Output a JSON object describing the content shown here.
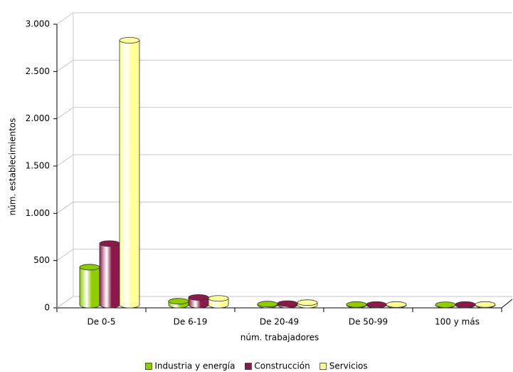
{
  "chart_data": {
    "type": "bar",
    "x_label": "núm. trabajadores",
    "y_label": "núm. establecimientos",
    "categories": [
      "De 0-5",
      "De 6-19",
      "De 20-49",
      "De 50-99",
      "100 y más"
    ],
    "series": [
      {
        "name": "Industria y energía",
        "color": "#8fcc00",
        "values": [
          400,
          40,
          10,
          5,
          3
        ]
      },
      {
        "name": "Construcción",
        "color": "#8b1a4a",
        "values": [
          650,
          80,
          15,
          5,
          5
        ]
      },
      {
        "name": "Servicios",
        "color": "#ffff99",
        "values": [
          2800,
          70,
          25,
          5,
          5
        ]
      }
    ],
    "ylim": [
      0,
      3000
    ],
    "yticks": [
      0,
      500,
      {
        "value": 1000,
        "label": "1.000"
      },
      {
        "value": 1500,
        "label": "1.500"
      },
      {
        "value": 2000,
        "label": "2.000"
      },
      {
        "value": 2500,
        "label": "2.500"
      },
      {
        "value": 3000,
        "label": "3.000"
      }
    ],
    "grid": true,
    "legend": "bottom"
  }
}
